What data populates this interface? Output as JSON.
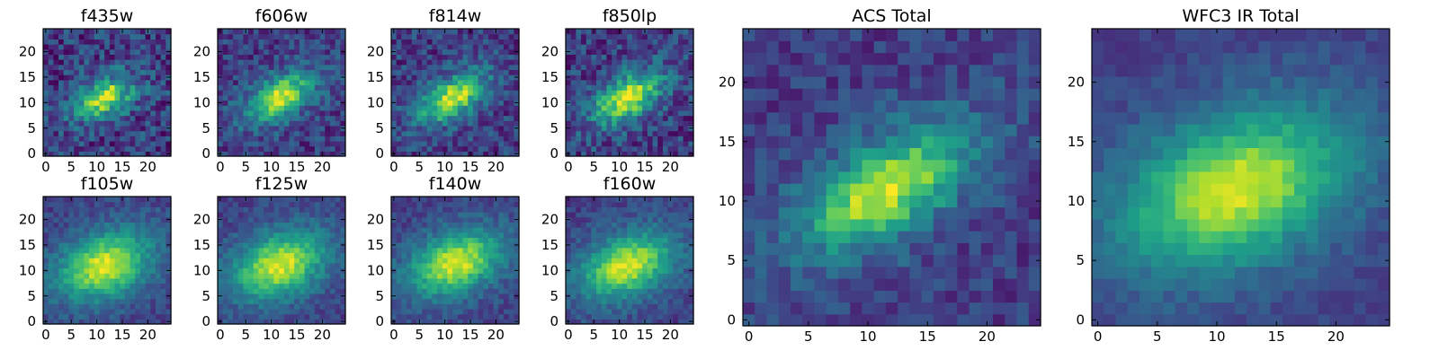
{
  "chart_data": [
    {
      "type": "heatmap",
      "title": "f435w",
      "x_ticks": [
        "0",
        "5",
        "10",
        "15",
        "20"
      ],
      "y_ticks": [
        "0",
        "5",
        "10",
        "15",
        "20"
      ],
      "xlim": [
        0,
        25
      ],
      "ylim": [
        0,
        25
      ],
      "grid_size": 25,
      "peak": [
        12,
        11.5
      ],
      "sigma": [
        3.0,
        1.8
      ],
      "angle_deg": 28,
      "noise": 0.38
    },
    {
      "type": "heatmap",
      "title": "f606w",
      "x_ticks": [
        "0",
        "5",
        "10",
        "15",
        "20"
      ],
      "y_ticks": [
        "0",
        "5",
        "10",
        "15",
        "20"
      ],
      "xlim": [
        0,
        25
      ],
      "ylim": [
        0,
        25
      ],
      "grid_size": 25,
      "peak": [
        12,
        11.5
      ],
      "sigma": [
        3.6,
        1.9
      ],
      "angle_deg": 30,
      "noise": 0.3
    },
    {
      "type": "heatmap",
      "title": "f814w",
      "x_ticks": [
        "0",
        "5",
        "10",
        "15",
        "20"
      ],
      "y_ticks": [
        "0",
        "5",
        "10",
        "15",
        "20"
      ],
      "xlim": [
        0,
        25
      ],
      "ylim": [
        0,
        25
      ],
      "grid_size": 25,
      "peak": [
        12,
        11.5
      ],
      "sigma": [
        3.6,
        1.9
      ],
      "angle_deg": 30,
      "noise": 0.32
    },
    {
      "type": "heatmap",
      "title": "f850lp",
      "x_ticks": [
        "0",
        "5",
        "10",
        "15",
        "20"
      ],
      "y_ticks": [
        "0",
        "5",
        "10",
        "15",
        "20"
      ],
      "xlim": [
        0,
        25
      ],
      "ylim": [
        0,
        25
      ],
      "grid_size": 25,
      "peak": [
        12,
        11.5
      ],
      "sigma": [
        3.8,
        2.0
      ],
      "angle_deg": 30,
      "noise": 0.35
    },
    {
      "type": "heatmap",
      "title": "f105w",
      "x_ticks": [
        "0",
        "5",
        "10",
        "15",
        "20"
      ],
      "y_ticks": [
        "0",
        "5",
        "10",
        "15",
        "20"
      ],
      "xlim": [
        0,
        25
      ],
      "ylim": [
        0,
        25
      ],
      "grid_size": 25,
      "peak": [
        12,
        11.5
      ],
      "sigma": [
        5.0,
        3.2
      ],
      "angle_deg": 22,
      "noise": 0.18
    },
    {
      "type": "heatmap",
      "title": "f125w",
      "x_ticks": [
        "0",
        "5",
        "10",
        "15",
        "20"
      ],
      "y_ticks": [
        "0",
        "5",
        "10",
        "15",
        "20"
      ],
      "xlim": [
        0,
        25
      ],
      "ylim": [
        0,
        25
      ],
      "grid_size": 25,
      "peak": [
        12,
        11.5
      ],
      "sigma": [
        5.0,
        3.2
      ],
      "angle_deg": 22,
      "noise": 0.18
    },
    {
      "type": "heatmap",
      "title": "f140w",
      "x_ticks": [
        "0",
        "5",
        "10",
        "15",
        "20"
      ],
      "y_ticks": [
        "0",
        "5",
        "10",
        "15",
        "20"
      ],
      "xlim": [
        0,
        25
      ],
      "ylim": [
        0,
        25
      ],
      "grid_size": 25,
      "peak": [
        12.5,
        12
      ],
      "sigma": [
        5.0,
        3.0
      ],
      "angle_deg": 22,
      "noise": 0.18
    },
    {
      "type": "heatmap",
      "title": "f160w",
      "x_ticks": [
        "0",
        "5",
        "10",
        "15",
        "20"
      ],
      "y_ticks": [
        "0",
        "5",
        "10",
        "15",
        "20"
      ],
      "xlim": [
        0,
        25
      ],
      "ylim": [
        0,
        25
      ],
      "grid_size": 25,
      "peak": [
        12,
        11.5
      ],
      "sigma": [
        5.0,
        3.0
      ],
      "angle_deg": 22,
      "noise": 0.18
    },
    {
      "type": "heatmap",
      "title": "ACS Total",
      "x_ticks": [
        "0",
        "5",
        "10",
        "15",
        "20"
      ],
      "y_ticks": [
        "0",
        "5",
        "10",
        "15",
        "20"
      ],
      "xlim": [
        0,
        25
      ],
      "ylim": [
        0,
        25
      ],
      "grid_size": 25,
      "peak": [
        12,
        11.5
      ],
      "sigma": [
        4.0,
        1.9
      ],
      "angle_deg": 30,
      "noise": 0.22
    },
    {
      "type": "heatmap",
      "title": "WFC3 IR Total",
      "x_ticks": [
        "0",
        "5",
        "10",
        "15",
        "20"
      ],
      "y_ticks": [
        "0",
        "5",
        "10",
        "15",
        "20"
      ],
      "xlim": [
        0,
        25
      ],
      "ylim": [
        0,
        25
      ],
      "grid_size": 25,
      "peak": [
        12,
        11.5
      ],
      "sigma": [
        5.2,
        3.1
      ],
      "angle_deg": 22,
      "noise": 0.12
    }
  ],
  "colormap": [
    "#440154",
    "#482878",
    "#3e4989",
    "#31688e",
    "#26828e",
    "#1f9e89",
    "#35b779",
    "#6ece58",
    "#b5de2b",
    "#fde725"
  ]
}
